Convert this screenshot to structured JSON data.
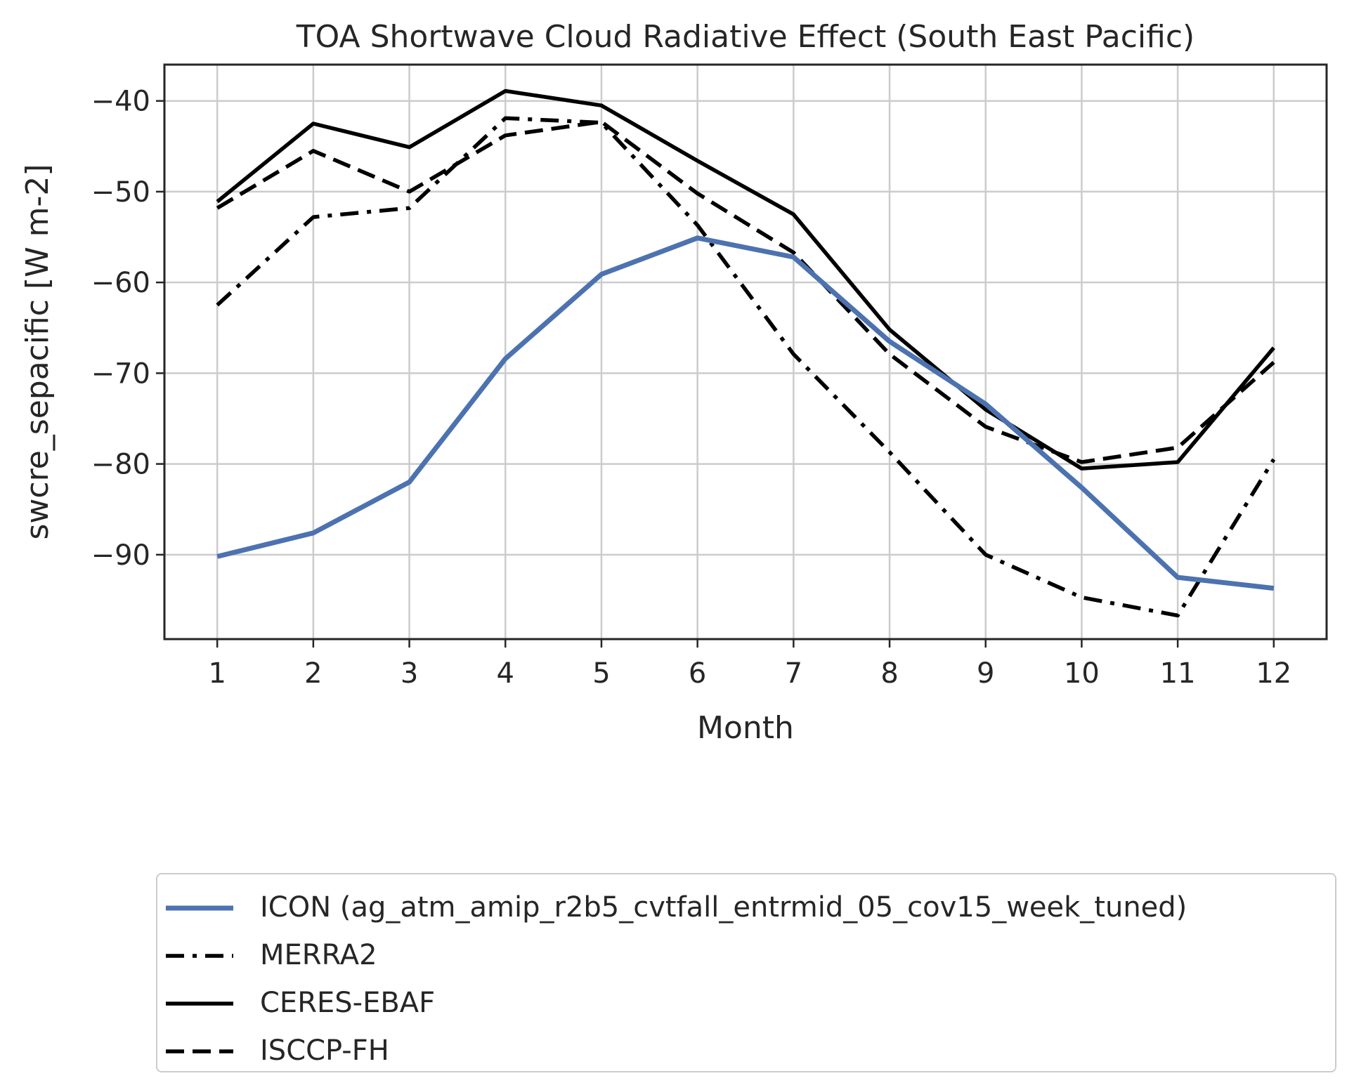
{
  "chart_data": {
    "type": "line",
    "title": "TOA Shortwave Cloud Radiative Effect (South East Pacific)",
    "xlabel": "Month",
    "ylabel": "swcre_sepacific [W m-2]",
    "x": [
      1,
      2,
      3,
      4,
      5,
      6,
      7,
      8,
      9,
      10,
      11,
      12
    ],
    "xticks": [
      "1",
      "2",
      "3",
      "4",
      "5",
      "6",
      "7",
      "8",
      "9",
      "10",
      "11",
      "12"
    ],
    "yticks": [
      -40,
      -50,
      -60,
      -70,
      -80,
      -90
    ],
    "ytick_labels": [
      "−40",
      "−50",
      "−60",
      "−70",
      "−80",
      "−90"
    ],
    "xlim": [
      0.45,
      12.55
    ],
    "ylim": [
      -99.3,
      -36.0
    ],
    "grid": true,
    "legend_position": "below",
    "series": [
      {
        "name": "ICON (ag_atm_amip_r2b5_cvtfall_entrmid_05_cov15_week_tuned)",
        "values": [
          -90.2,
          -87.6,
          -82.0,
          -68.4,
          -59.1,
          -55.1,
          -57.2,
          -66.5,
          -73.4,
          -82.6,
          -92.5,
          -93.7
        ],
        "color": "#4c72b0",
        "style": "solid"
      },
      {
        "name": "MERRA2",
        "values": [
          -62.5,
          -52.8,
          -51.8,
          -41.9,
          -42.4,
          -53.7,
          -67.9,
          -78.7,
          -90.0,
          -94.7,
          -96.7,
          -79.5
        ],
        "color": "#000000",
        "style": "dashdot"
      },
      {
        "name": "CERES-EBAF",
        "values": [
          -51.1,
          -42.5,
          -45.1,
          -38.9,
          -40.5,
          -46.6,
          -52.5,
          -65.2,
          -74.0,
          -80.5,
          -79.8,
          -67.2
        ],
        "color": "#000000",
        "style": "solid"
      },
      {
        "name": "ISCCP-FH",
        "values": [
          -51.8,
          -45.5,
          -50.0,
          -43.8,
          -42.3,
          -50.2,
          -56.7,
          -67.9,
          -75.9,
          -79.8,
          -78.2,
          -68.8
        ],
        "color": "#000000",
        "style": "dashed"
      }
    ]
  }
}
